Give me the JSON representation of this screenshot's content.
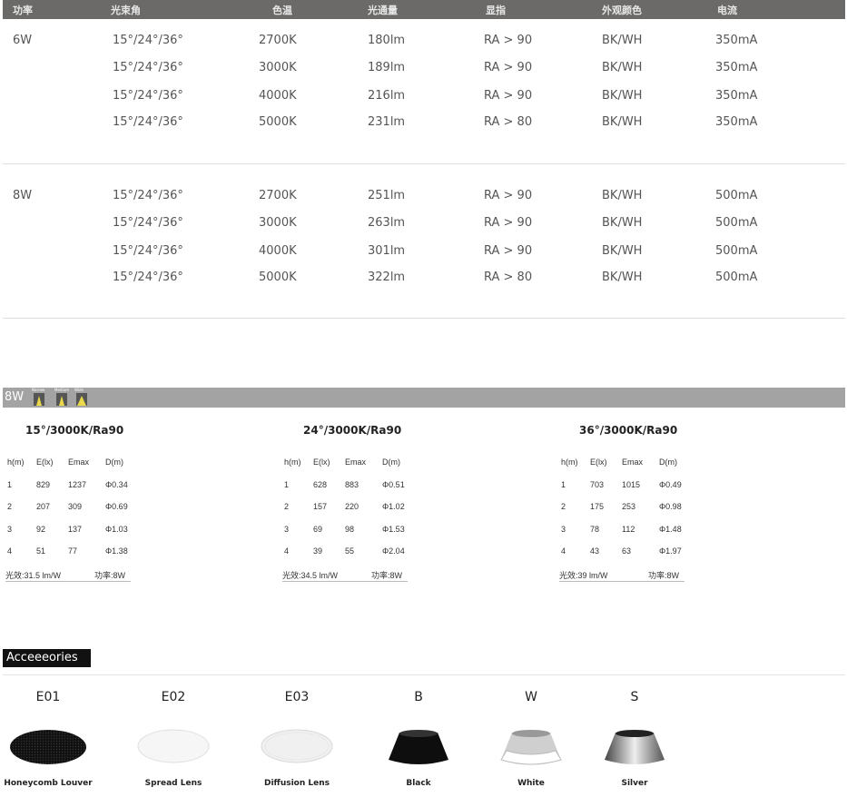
{
  "spec_table": {
    "headers": [
      "功率",
      "光束角",
      "色温",
      "光通量",
      "显指",
      "外观颜色",
      "电流"
    ],
    "groups": [
      {
        "power": "6W",
        "rows": [
          [
            "15°/24°/36°",
            "2700K",
            "180lm",
            "RA > 90",
            "BK/WH",
            "350mA"
          ],
          [
            "15°/24°/36°",
            "3000K",
            "189lm",
            "RA > 90",
            "BK/WH",
            "350mA"
          ],
          [
            "15°/24°/36°",
            "4000K",
            "216lm",
            "RA > 90",
            "BK/WH",
            "350mA"
          ],
          [
            "15°/24°/36°",
            "5000K",
            "231lm",
            "RA > 80",
            "BK/WH",
            "350mA"
          ]
        ]
      },
      {
        "power": "8W",
        "rows": [
          [
            "15°/24°/36°",
            "2700K",
            "251lm",
            "RA > 90",
            "BK/WH",
            "500mA"
          ],
          [
            "15°/24°/36°",
            "3000K",
            "263lm",
            "RA > 90",
            "BK/WH",
            "500mA"
          ],
          [
            "15°/24°/36°",
            "4000K",
            "301lm",
            "RA > 90",
            "BK/WH",
            "500mA"
          ],
          [
            "15°/24°/36°",
            "5000K",
            "322lm",
            "RA > 80",
            "BK/WH",
            "500mA"
          ]
        ]
      }
    ]
  },
  "photometric": {
    "bar_label": "8W",
    "beam_icons": [
      "Narrow",
      "Medium",
      "Wide"
    ],
    "columns": [
      "h(m)",
      "E(lx)",
      "Emax",
      "D(m)"
    ],
    "groups": [
      {
        "title": "15°/3000K/Ra90",
        "rows": [
          [
            "1",
            "829",
            "1237",
            "Φ0.34"
          ],
          [
            "2",
            "207",
            "309",
            "Φ0.69"
          ],
          [
            "3",
            "92",
            "137",
            "Φ1.03"
          ],
          [
            "4",
            "51",
            "77",
            "Φ1.38"
          ]
        ],
        "efficacy": "光效:31.5 lm/W",
        "power": "功率:8W"
      },
      {
        "title": "24°/3000K/Ra90",
        "rows": [
          [
            "1",
            "628",
            "883",
            "Φ0.51"
          ],
          [
            "2",
            "157",
            "220",
            "Φ1.02"
          ],
          [
            "3",
            "69",
            "98",
            "Φ1.53"
          ],
          [
            "4",
            "39",
            "55",
            "Φ2.04"
          ]
        ],
        "efficacy": "光效:34.5 lm/W",
        "power": "功率:8W"
      },
      {
        "title": "36°/3000K/Ra90",
        "rows": [
          [
            "1",
            "703",
            "1015",
            "Φ0.49"
          ],
          [
            "2",
            "175",
            "253",
            "Φ0.98"
          ],
          [
            "3",
            "78",
            "112",
            "Φ1.48"
          ],
          [
            "4",
            "43",
            "63",
            "Φ1.97"
          ]
        ],
        "efficacy": "光效:39 lm/W",
        "power": "功率:8W"
      }
    ]
  },
  "accessories": {
    "title": "Acceeeories",
    "items": [
      {
        "code": "E01",
        "label": "Honeycomb Louver"
      },
      {
        "code": "E02",
        "label": "Spread Lens"
      },
      {
        "code": "E03",
        "label": "Diffusion Lens"
      },
      {
        "code": "B",
        "label": "Black"
      },
      {
        "code": "W",
        "label": "White"
      },
      {
        "code": "S",
        "label": "Silver"
      }
    ]
  }
}
